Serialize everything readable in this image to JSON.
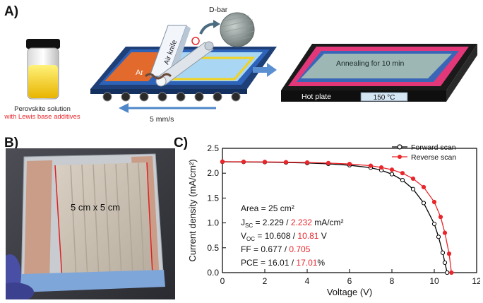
{
  "panels": {
    "a": "A)",
    "b": "B)",
    "c": "C)"
  },
  "panel_a": {
    "dbar": "D-bar",
    "air_knife": "Air knife",
    "ar": "Ar",
    "solution_line1": "Perovskite solution",
    "solution_line2": "with Lewis base additives",
    "speed": "5 mm/s",
    "annealing": "Annealing for 10 min",
    "hot_plate": "Hot plate",
    "temperature": "150 °C"
  },
  "panel_b": {
    "size_label": "5 cm x 5 cm"
  },
  "chart_data": {
    "type": "line",
    "xlabel": "Voltage (V)",
    "ylabel": "Current density (mA/cm²)",
    "xlim": [
      0,
      12
    ],
    "ylim": [
      0,
      2.5
    ],
    "xticks": [
      "0",
      "2",
      "4",
      "6",
      "8",
      "10",
      "12"
    ],
    "yticks": [
      "0.0",
      "0.5",
      "1.0",
      "1.5",
      "2.0",
      "2.5"
    ],
    "legend_position": "top-right",
    "series": [
      {
        "name": "Forward scan",
        "color": "#000000",
        "marker": "open-circle",
        "x": [
          0,
          1,
          2,
          3,
          4,
          5,
          6,
          7,
          7.5,
          8,
          8.5,
          9,
          9.5,
          10,
          10.2,
          10.4,
          10.5,
          10.608
        ],
        "y": [
          2.229,
          2.226,
          2.222,
          2.215,
          2.205,
          2.188,
          2.16,
          2.11,
          2.06,
          1.98,
          1.86,
          1.68,
          1.4,
          0.98,
          0.72,
          0.4,
          0.2,
          0.0
        ]
      },
      {
        "name": "Reverse scan",
        "color": "#e8262b",
        "marker": "filled-circle",
        "x": [
          0,
          1,
          2,
          3,
          4,
          5,
          6,
          7,
          7.5,
          8,
          8.5,
          9,
          9.5,
          10,
          10.3,
          10.5,
          10.7,
          10.81
        ],
        "y": [
          2.232,
          2.23,
          2.227,
          2.222,
          2.215,
          2.204,
          2.185,
          2.15,
          2.115,
          2.07,
          2.0,
          1.89,
          1.72,
          1.42,
          1.12,
          0.8,
          0.38,
          0.0
        ]
      }
    ],
    "annotations": {
      "area": "Area = 25 cm²",
      "jsc_label": "J",
      "jsc_sub": "SC",
      "jsc_fwd": " = 2.229 / ",
      "jsc_rev": "2.232",
      "jsc_unit": " mA/cm²",
      "voc_label": "V",
      "voc_sub": "OC",
      "voc_fwd": " = 10.608 / ",
      "voc_rev": "10.81",
      "voc_unit": " V",
      "ff_fwd": "FF = 0.677 / ",
      "ff_rev": "0.705",
      "pce_fwd": "PCE = 16.01 / ",
      "pce_rev": "17.01",
      "pce_unit": "%"
    }
  },
  "colors": {
    "reverse": "#e8262b",
    "forward": "#000000",
    "hotplate": "#e2387a",
    "substrate": "#2d63b8"
  }
}
